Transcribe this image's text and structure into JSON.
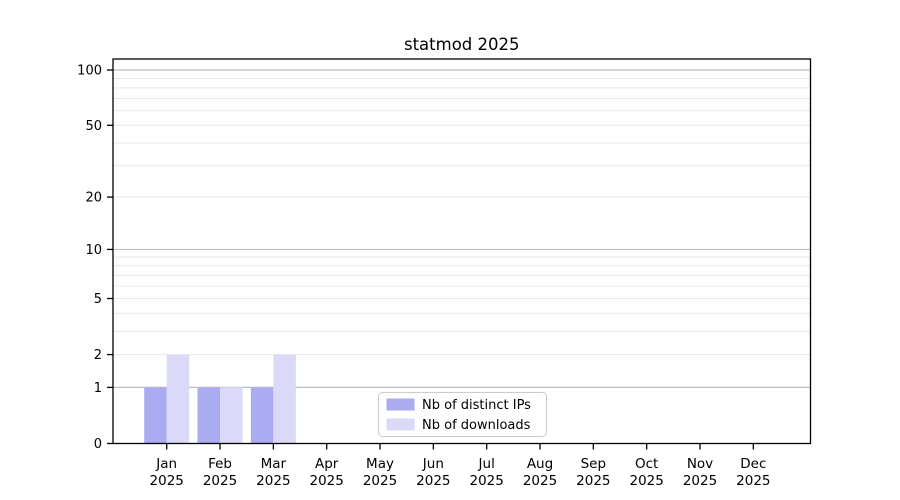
{
  "title": "statmod 2025",
  "chart_data": {
    "type": "bar",
    "title": "statmod 2025",
    "categories": [
      "Jan",
      "Feb",
      "Mar",
      "Apr",
      "May",
      "Jun",
      "Jul",
      "Aug",
      "Sep",
      "Oct",
      "Nov",
      "Dec"
    ],
    "category_year": "2025",
    "series": [
      {
        "name": "Nb of distinct IPs",
        "color": "#ababf2",
        "values": [
          1,
          1,
          1,
          0,
          0,
          0,
          0,
          0,
          0,
          0,
          0,
          0
        ]
      },
      {
        "name": "Nb of downloads",
        "color": "#dadaf8",
        "values": [
          2,
          1,
          2,
          0,
          0,
          0,
          0,
          0,
          0,
          0,
          0,
          0
        ]
      }
    ],
    "y_scale": "log10(1+value)",
    "y_tick_values": [
      0,
      1,
      2,
      5,
      10,
      20,
      50,
      100
    ],
    "y_tick_labels": [
      "0",
      "1",
      "2",
      "5",
      "10",
      "20",
      "50",
      "100"
    ],
    "y_minor_grid_values": [
      2,
      3,
      4,
      5,
      6,
      7,
      8,
      9,
      20,
      30,
      40,
      50,
      60,
      70,
      80,
      90
    ],
    "y_major_grid_values": [
      1,
      10,
      100
    ],
    "ylim": [
      0,
      115
    ],
    "grid": true,
    "legend_position": "bottom-center",
    "colors": {
      "axis": "#000000",
      "major_grid": "#bfbfbf",
      "minor_grid": "#e8e8e8",
      "legend_border": "#cccccc",
      "background": "#ffffff"
    }
  }
}
